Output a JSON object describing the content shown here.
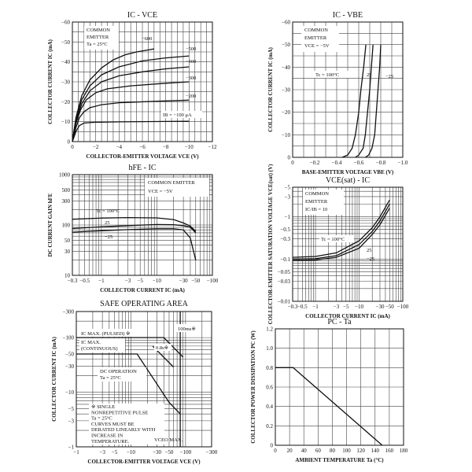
{
  "chart_data": [
    {
      "id": "ic_vce",
      "type": "line",
      "title": "IC - VCE",
      "xlabel": "COLLECTOR-EMITTER VOLTAGE   VCE   (V)",
      "ylabel": "COLLECTOR CURRENT   IC   (mA)",
      "xlim": [
        0,
        -12
      ],
      "ylim": [
        0,
        -60
      ],
      "x_ticks": [
        "0",
        "−2",
        "−4",
        "−6",
        "−8",
        "−10",
        "−12"
      ],
      "y_ticks": [
        "0",
        "−10",
        "−20",
        "−30",
        "−40",
        "−50",
        "−60"
      ],
      "annotation_lines": [
        "COMMON",
        "EMITTER",
        "Ta = 25°C"
      ],
      "ib_label": "IB = −100 μA",
      "series": [
        {
          "name": "IB = −100 μA",
          "label": "",
          "points": [
            [
              0,
              0
            ],
            [
              -0.3,
              -5
            ],
            [
              -0.6,
              -8
            ],
            [
              -1,
              -9.3
            ],
            [
              -2,
              -9.7
            ],
            [
              -4,
              -9.9
            ],
            [
              -8,
              -10.1
            ],
            [
              -10,
              -10.2
            ]
          ]
        },
        {
          "name": "IB = −200 μA",
          "label": "−200",
          "points": [
            [
              0,
              0
            ],
            [
              -0.3,
              -7
            ],
            [
              -0.6,
              -12
            ],
            [
              -1,
              -15
            ],
            [
              -1.5,
              -17
            ],
            [
              -2.5,
              -18.5
            ],
            [
              -4,
              -19.5
            ],
            [
              -7,
              -20.2
            ],
            [
              -10,
              -20.8
            ]
          ]
        },
        {
          "name": "IB = −300 μA",
          "label": "−300",
          "points": [
            [
              0,
              0
            ],
            [
              -0.3,
              -9
            ],
            [
              -0.7,
              -16
            ],
            [
              -1.2,
              -21
            ],
            [
              -2,
              -24.5
            ],
            [
              -3,
              -26.5
            ],
            [
              -5,
              -28
            ],
            [
              -8,
              -29.3
            ],
            [
              -10,
              -30
            ]
          ]
        },
        {
          "name": "IB = −400 μA",
          "label": "−400",
          "points": [
            [
              0,
              0
            ],
            [
              -0.3,
              -10
            ],
            [
              -0.8,
              -19
            ],
            [
              -1.5,
              -25.5
            ],
            [
              -2.5,
              -30
            ],
            [
              -4,
              -33
            ],
            [
              -6,
              -35
            ],
            [
              -8,
              -36.5
            ],
            [
              -10,
              -37.5
            ]
          ]
        },
        {
          "name": "IB = −500 μA",
          "label": "−500",
          "points": [
            [
              0,
              0
            ],
            [
              -0.3,
              -11
            ],
            [
              -0.8,
              -21
            ],
            [
              -1.5,
              -28
            ],
            [
              -2.5,
              -33.5
            ],
            [
              -4,
              -37.5
            ],
            [
              -6,
              -40.5
            ],
            [
              -8,
              -42
            ],
            [
              -10,
              -43
            ]
          ]
        },
        {
          "name": "IB = −600 μA",
          "label": "−600",
          "points": [
            [
              0,
              0
            ],
            [
              -0.3,
              -12
            ],
            [
              -0.8,
              -23
            ],
            [
              -1.5,
              -31
            ],
            [
              -2.5,
              -37
            ],
            [
              -3.5,
              -41
            ],
            [
              -4.5,
              -43.5
            ],
            [
              -5.5,
              -45
            ],
            [
              -6.5,
              -46
            ],
            [
              -7,
              -46.5
            ]
          ]
        }
      ]
    },
    {
      "id": "ic_vbe",
      "type": "line",
      "title": "IC - VBE",
      "xlabel": "BASE-EMITTER VOLTAGE   VBE   (V)",
      "ylabel": "COLLECTOR CURRENT   IC   (mA)",
      "xlim": [
        0,
        -1.0
      ],
      "ylim": [
        0,
        -60
      ],
      "x_ticks": [
        "0",
        "−0.2",
        "−0.4",
        "−0.6",
        "−0.8",
        "−1.0"
      ],
      "y_ticks": [
        "0",
        "−10",
        "−20",
        "−30",
        "−40",
        "−50",
        "−60"
      ],
      "annotation_lines": [
        "COMMON",
        "EMITTER",
        "VCE = −5V"
      ],
      "series": [
        {
          "name": "Tc = 100°C",
          "label": "Tc = 100°C",
          "points": [
            [
              -0.45,
              0
            ],
            [
              -0.5,
              -1
            ],
            [
              -0.54,
              -4
            ],
            [
              -0.57,
              -10
            ],
            [
              -0.6,
              -20
            ],
            [
              -0.62,
              -30
            ],
            [
              -0.645,
              -40
            ],
            [
              -0.665,
              -50
            ]
          ]
        },
        {
          "name": "25",
          "label": "25",
          "points": [
            [
              -0.57,
              0
            ],
            [
              -0.6,
              -1
            ],
            [
              -0.64,
              -4
            ],
            [
              -0.66,
              -10
            ],
            [
              -0.68,
              -20
            ],
            [
              -0.7,
              -30
            ],
            [
              -0.715,
              -40
            ],
            [
              -0.73,
              -50
            ]
          ]
        },
        {
          "name": "−25",
          "label": "−25",
          "points": [
            [
              -0.66,
              0
            ],
            [
              -0.69,
              -1
            ],
            [
              -0.72,
              -4
            ],
            [
              -0.745,
              -10
            ],
            [
              -0.76,
              -20
            ],
            [
              -0.775,
              -30
            ],
            [
              -0.79,
              -40
            ],
            [
              -0.8,
              -50
            ]
          ]
        }
      ]
    },
    {
      "id": "hfe_ic",
      "type": "line",
      "title": "hFE - IC",
      "xlabel": "COLLECTOR CURRENT   IC   (mA)",
      "ylabel": "DC CURRENT GAIN   hFE",
      "x_scale": "log",
      "y_scale": "log",
      "xlim": [
        -0.3,
        -100
      ],
      "ylim": [
        10,
        1000
      ],
      "x_ticks": [
        "−0.3",
        "−0.5",
        "−1",
        "−3",
        "−5",
        "−10",
        "−30",
        "−50",
        "−100"
      ],
      "y_ticks": [
        "10",
        "30",
        "50",
        "100",
        "300",
        "500",
        "1000"
      ],
      "annotation_lines": [
        "COMMON EMITTER",
        "VCE = −5V"
      ],
      "series": [
        {
          "name": "Tc = 100°C",
          "label": "Tc = 100°C",
          "points": [
            [
              -0.3,
              130
            ],
            [
              -1,
              137
            ],
            [
              -3,
              140
            ],
            [
              -10,
              138
            ],
            [
              -20,
              128
            ],
            [
              -30,
              110
            ],
            [
              -40,
              95
            ],
            [
              -50,
              75
            ]
          ]
        },
        {
          "name": "25",
          "label": "25",
          "points": [
            [
              -0.3,
              85
            ],
            [
              -1,
              92
            ],
            [
              -3,
              97
            ],
            [
              -10,
              102
            ],
            [
              -20,
              101
            ],
            [
              -30,
              97
            ],
            [
              -40,
              90
            ],
            [
              -50,
              70
            ]
          ]
        },
        {
          "name": "−25",
          "label": "−25",
          "points": [
            [
              -0.3,
              72
            ],
            [
              -1,
              77
            ],
            [
              -3,
              81
            ],
            [
              -10,
              84
            ],
            [
              -20,
              84
            ],
            [
              -30,
              80
            ],
            [
              -40,
              55
            ],
            [
              -50,
              20
            ]
          ]
        }
      ]
    },
    {
      "id": "vcesat_ic",
      "type": "line",
      "title": "VCE(sat) - IC",
      "xlabel": "COLLECTOR CURRENT   IC   (mA)",
      "ylabel": "COLLECTOR-EMITTER SATURATION VOLTAGE   VCE(sat)   (V)",
      "x_scale": "log",
      "y_scale": "log",
      "xlim": [
        -0.3,
        -100
      ],
      "ylim": [
        -0.01,
        -5
      ],
      "x_ticks": [
        "−0.3",
        "−0.5",
        "−1",
        "−3",
        "−5",
        "−10",
        "−30",
        "−50",
        "−100"
      ],
      "y_ticks": [
        "−0.01",
        "−0.03",
        "−0.05",
        "−0.1",
        "−0.3",
        "−0.5",
        "−1",
        "−3",
        "−5"
      ],
      "annotation_lines": [
        "COMMON",
        "EMITTER",
        "IC/IB = 10"
      ],
      "series": [
        {
          "name": "Tc = 100°C",
          "label": "Tc = 100°C",
          "points": [
            [
              -0.3,
              -0.11
            ],
            [
              -1,
              -0.115
            ],
            [
              -3,
              -0.14
            ],
            [
              -10,
              -0.27
            ],
            [
              -20,
              -0.55
            ],
            [
              -30,
              -1.0
            ],
            [
              -50,
              -2.5
            ]
          ]
        },
        {
          "name": "25",
          "label": "25",
          "points": [
            [
              -0.3,
              -0.1
            ],
            [
              -1,
              -0.102
            ],
            [
              -3,
              -0.12
            ],
            [
              -10,
              -0.22
            ],
            [
              -20,
              -0.45
            ],
            [
              -30,
              -0.8
            ],
            [
              -50,
              -2.0
            ]
          ]
        },
        {
          "name": "−25",
          "label": "−25",
          "points": [
            [
              -0.3,
              -0.093
            ],
            [
              -1,
              -0.095
            ],
            [
              -3,
              -0.11
            ],
            [
              -10,
              -0.18
            ],
            [
              -20,
              -0.38
            ],
            [
              -30,
              -0.65
            ],
            [
              -50,
              -1.6
            ]
          ]
        }
      ]
    },
    {
      "id": "soa",
      "type": "line",
      "title": "SAFE OPERATING AREA",
      "xlabel": "COLLECTOR-EMITTER VOLTAGE   VCE   (V)",
      "ylabel": "COLLECTOR CURRENT   IC   (mA)",
      "x_scale": "log",
      "y_scale": "log",
      "xlim": [
        -1,
        -300
      ],
      "ylim": [
        -1,
        -300
      ],
      "x_ticks": [
        "−1",
        "−3",
        "−5",
        "−10",
        "−30",
        "−50",
        "−100",
        "−300"
      ],
      "y_ticks": [
        "−1",
        "−3",
        "−5",
        "−10",
        "−30",
        "−50",
        "−100",
        "−300"
      ],
      "ic_pulsed": "IC MAX. (PULSED) ※",
      "ic_cont_lines": [
        "IC MAX.",
        "(CONTINUOUS)"
      ],
      "dc_lines": [
        "DC OPERATION",
        "Ta = 25°C"
      ],
      "pulse_100ms": "100ms※",
      "pulse_08s": "0.8s※",
      "note_lines": [
        "※  SINGLE",
        "NONREPETITIVE PULSE",
        "Ta = 25°C",
        "CURVES MUST BE",
        "DERATED LINEARLY WITH",
        "INCREASE IN",
        "TEMPERATURE."
      ],
      "vceo_label": "VCEO MAX.",
      "series": [
        {
          "name": "DC operation",
          "points": [
            [
              -1,
              -50
            ],
            [
              -13,
              -50
            ],
            [
              -50,
              -6.5
            ],
            [
              -80,
              -4
            ]
          ]
        },
        {
          "name": "IC max (pulsed)",
          "points": [
            [
              -1,
              -100
            ],
            [
              -40,
              -100
            ]
          ]
        },
        {
          "name": "100ms",
          "points": [
            [
              -40,
              -100
            ],
            [
              -90,
              -44
            ]
          ]
        },
        {
          "name": "0.8s",
          "points": [
            [
              -25,
              -70
            ],
            [
              -60,
              -29
            ]
          ]
        },
        {
          "name": "VCEO max",
          "points": [
            [
              -80,
              -1
            ],
            [
              -80,
              -300
            ]
          ]
        }
      ]
    },
    {
      "id": "pc_ta",
      "type": "line",
      "title": "PC - Ta",
      "xlabel": "AMBIENT TEMPERATURE   Ta   (°C)",
      "ylabel": "COLLECTOR POWER DISSIPATION   PC   (W)",
      "xlim": [
        0,
        180
      ],
      "ylim": [
        0,
        1.2
      ],
      "x_ticks": [
        "0",
        "20",
        "40",
        "60",
        "80",
        "100",
        "120",
        "140",
        "160",
        "180"
      ],
      "y_ticks": [
        "0",
        "0.2",
        "0.4",
        "0.6",
        "0.8",
        "1.0",
        "1.2"
      ],
      "series": [
        {
          "name": "PC",
          "points": [
            [
              0,
              0.8
            ],
            [
              25,
              0.8
            ],
            [
              150,
              0
            ]
          ]
        }
      ]
    }
  ]
}
